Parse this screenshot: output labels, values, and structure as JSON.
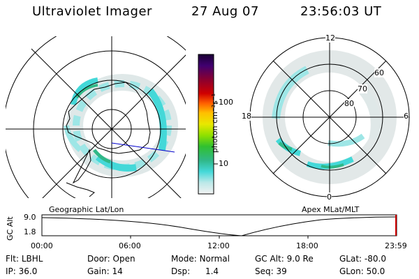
{
  "header": {
    "instrument": "Ultraviolet Imager",
    "date": "27 Aug 07",
    "time": "23:56:03 UT"
  },
  "colorbar": {
    "unit_label": "photon cm⁻²s⁻¹",
    "ticks": [
      "100",
      "10"
    ]
  },
  "left_panel": {
    "caption": "Geographic Lat/Lon"
  },
  "right_panel": {
    "caption": "Apex MLat/MLT",
    "mlt_labels": [
      "12",
      "18",
      "6",
      "0"
    ],
    "lat_labels": [
      "60",
      "70",
      "80"
    ]
  },
  "timeline": {
    "ylabel": "GC Alt",
    "yticks": [
      "9.0",
      "1.8"
    ],
    "xticks": [
      "00:00",
      "06:00",
      "12:00",
      "18:00",
      "23:59"
    ]
  },
  "info": {
    "flt_label": "Flt:",
    "flt_value": "LBHL",
    "ip_label": "IP:",
    "ip_value": "36.0",
    "door_label": "Door:",
    "door_value": "Open",
    "gain_label": "Gain:",
    "gain_value": "14",
    "mode_label": "Mode:",
    "mode_value": "Normal",
    "dsp_label": "Dsp:",
    "dsp_value": "1.4",
    "gcalt_label": "GC Alt:",
    "gcalt_value": "9.0 Re",
    "seq_label": "Seq:",
    "seq_value": "39",
    "glat_label": "GLat:",
    "glat_value": "-80.0",
    "glon_label": "GLon:",
    "glon_value": "50.0"
  },
  "colors": {
    "aurora_light": "#d8e8e8",
    "aurora_cyan": "#44d8d8",
    "aurora_green": "#30b888",
    "track": "#0000cc"
  }
}
